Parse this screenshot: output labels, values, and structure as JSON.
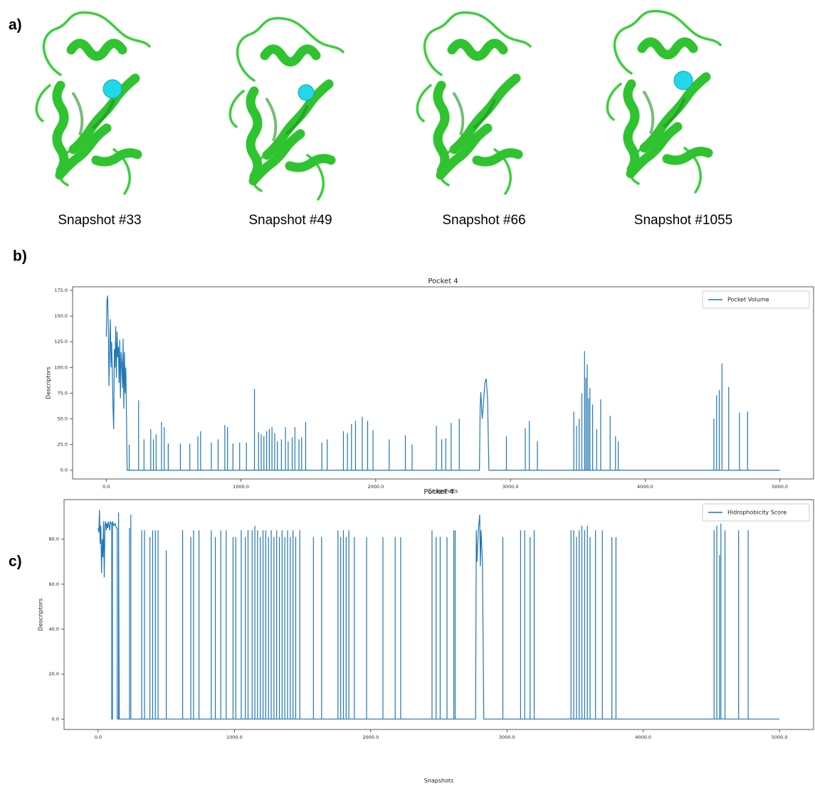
{
  "figure": {
    "panel_labels": [
      "a)",
      "b)",
      "c)"
    ],
    "snapshots": [
      "Snapshot #33",
      "Snapshot #49",
      "Snapshot #66",
      "Snapshot #1055"
    ]
  },
  "chart_data": [
    {
      "type": "line",
      "title": "Pocket 4",
      "x_label": "Snapshots",
      "y_label": "Descriptors",
      "xlim": [
        -250,
        5250
      ],
      "ylim": [
        -8.5,
        178.5
      ],
      "xticks": [
        {
          "value": 0,
          "label": "0.0"
        },
        {
          "value": 1000,
          "label": "1000.0"
        },
        {
          "value": 2000,
          "label": "2000.0"
        },
        {
          "value": 3000,
          "label": "3000.0"
        },
        {
          "value": 4000,
          "label": "4000.0"
        },
        {
          "value": 5000,
          "label": "5000.0"
        }
      ],
      "yticks": [
        {
          "value": 0,
          "label": "0.0"
        },
        {
          "value": 25,
          "label": "25.0"
        },
        {
          "value": 50,
          "label": "50.0"
        },
        {
          "value": 75,
          "label": "75.0"
        },
        {
          "value": 100,
          "label": "100.0"
        },
        {
          "value": 125,
          "label": "125.0"
        },
        {
          "value": 150,
          "label": "150.0"
        },
        {
          "value": 175,
          "label": "175.0"
        }
      ],
      "grid": false,
      "legend": "upper right",
      "x": [
        0,
        5,
        10,
        15,
        20,
        25,
        30,
        35,
        40,
        45,
        50,
        55,
        60,
        65,
        70,
        75,
        80,
        85,
        90,
        95,
        100,
        105,
        110,
        115,
        120,
        125,
        130,
        135,
        140,
        145,
        150,
        155,
        170,
        170,
        170,
        240,
        240,
        240,
        280,
        280,
        280,
        330,
        330,
        330,
        350,
        350,
        350,
        370,
        370,
        370,
        410,
        410,
        410,
        430,
        430,
        430,
        460,
        460,
        460,
        550,
        550,
        550,
        620,
        620,
        620,
        680,
        680,
        680,
        700,
        700,
        700,
        780,
        780,
        780,
        830,
        830,
        830,
        880,
        880,
        880,
        900,
        900,
        900,
        940,
        940,
        940,
        990,
        990,
        990,
        1040,
        1040,
        1040,
        1100,
        1100,
        1100,
        1130,
        1130,
        1130,
        1150,
        1150,
        1150,
        1170,
        1170,
        1170,
        1190,
        1190,
        1190,
        1210,
        1210,
        1210,
        1230,
        1230,
        1230,
        1250,
        1250,
        1250,
        1270,
        1270,
        1270,
        1300,
        1300,
        1300,
        1330,
        1330,
        1330,
        1350,
        1350,
        1350,
        1380,
        1380,
        1380,
        1400,
        1400,
        1400,
        1430,
        1430,
        1430,
        1450,
        1450,
        1450,
        1480,
        1480,
        1480,
        1600,
        1600,
        1600,
        1640,
        1640,
        1640,
        1760,
        1760,
        1760,
        1790,
        1790,
        1790,
        1820,
        1820,
        1820,
        1850,
        1850,
        1850,
        1900,
        1900,
        1900,
        1940,
        1940,
        1940,
        1980,
        1980,
        1980,
        2100,
        2100,
        2100,
        2220,
        2220,
        2220,
        2270,
        2270,
        2270,
        2450,
        2450,
        2450,
        2490,
        2490,
        2490,
        2520,
        2520,
        2520,
        2560,
        2560,
        2560,
        2620,
        2620,
        2620,
        2770,
        2775,
        2780,
        2790,
        2800,
        2810,
        2820,
        2830,
        2840,
        2970,
        2970,
        2970,
        3110,
        3110,
        3110,
        3140,
        3140,
        3140,
        3200,
        3200,
        3200,
        3470,
        3470,
        3470,
        3490,
        3490,
        3490,
        3510,
        3510,
        3510,
        3530,
        3530,
        3530,
        3550,
        3550,
        3550,
        3560,
        3560,
        3560,
        3570,
        3570,
        3570,
        3580,
        3580,
        3580,
        3590,
        3590,
        3590,
        3610,
        3610,
        3610,
        3640,
        3640,
        3640,
        3670,
        3670,
        3670,
        3740,
        3740,
        3740,
        3780,
        3780,
        3780,
        3800,
        3800,
        3800,
        4510,
        4510,
        4510,
        4530,
        4530,
        4530,
        4550,
        4550,
        4550,
        4570,
        4570,
        4570,
        4620,
        4620,
        4620,
        4700,
        4700,
        4700,
        4760,
        4760,
        4760,
        4999
      ],
      "series": [
        {
          "name": "Pocket Volume",
          "color": "#1f77b4",
          "values": [
            130,
            165,
            170,
            140,
            82,
            120,
            147,
            100,
            125,
            95,
            60,
            40,
            118,
            100,
            140,
            90,
            135,
            110,
            120,
            85,
            127,
            70,
            115,
            105,
            80,
            128,
            60,
            115,
            75,
            100,
            50,
            0,
            0,
            25,
            0,
            0,
            68,
            0,
            0,
            30,
            0,
            0,
            40,
            0,
            0,
            30,
            0,
            0,
            35,
            0,
            0,
            47,
            0,
            0,
            42,
            0,
            0,
            26,
            0,
            0,
            26,
            0,
            0,
            26,
            0,
            0,
            33,
            0,
            0,
            38,
            0,
            0,
            27,
            0,
            0,
            30,
            0,
            0,
            44,
            0,
            0,
            42,
            0,
            0,
            26,
            0,
            0,
            27,
            0,
            0,
            27,
            0,
            0,
            79,
            0,
            0,
            37,
            0,
            0,
            35,
            0,
            0,
            33,
            0,
            0,
            38,
            0,
            0,
            40,
            0,
            0,
            42,
            0,
            0,
            36,
            0,
            0,
            28,
            0,
            0,
            30,
            0,
            0,
            42,
            0,
            0,
            28,
            0,
            0,
            32,
            0,
            0,
            42,
            0,
            0,
            30,
            0,
            0,
            32,
            0,
            0,
            47,
            0,
            0,
            27,
            0,
            0,
            30,
            0,
            0,
            38,
            0,
            0,
            36,
            0,
            0,
            45,
            0,
            0,
            48,
            0,
            0,
            52,
            0,
            0,
            48,
            0,
            0,
            39,
            0,
            0,
            30,
            0,
            0,
            34,
            0,
            0,
            25,
            0,
            0,
            43,
            0,
            0,
            30,
            0,
            0,
            31,
            0,
            0,
            46,
            0,
            0,
            50,
            0,
            0,
            60,
            76,
            50,
            65,
            85,
            89,
            70,
            0,
            0,
            33,
            0,
            0,
            41,
            0,
            0,
            48,
            0,
            0,
            28,
            0,
            0,
            57,
            0,
            0,
            43,
            0,
            0,
            50,
            0,
            0,
            75,
            0,
            0,
            116,
            0,
            0,
            90,
            0,
            0,
            103,
            0,
            0,
            70,
            0,
            0,
            80,
            0,
            0,
            64,
            0,
            0,
            40,
            0,
            0,
            69,
            0,
            0,
            53,
            0,
            0,
            33,
            0,
            0,
            28,
            0,
            0,
            50,
            0,
            0,
            73,
            0,
            0,
            78,
            0,
            0,
            104,
            0,
            0,
            81,
            0,
            0,
            56,
            0,
            0,
            57,
            0,
            0
          ]
        }
      ]
    },
    {
      "type": "line",
      "title": "Pocket 4",
      "x_label": "Snapshots",
      "y_label": "Descriptors",
      "xlim": [
        -250,
        5250
      ],
      "ylim": [
        -4.65,
        97.65
      ],
      "xticks": [
        {
          "value": 0,
          "label": "0.0"
        },
        {
          "value": 1000,
          "label": "1000.0"
        },
        {
          "value": 2000,
          "label": "2000.0"
        },
        {
          "value": 3000,
          "label": "3000.0"
        },
        {
          "value": 4000,
          "label": "4000.0"
        },
        {
          "value": 5000,
          "label": "5000.0"
        }
      ],
      "yticks": [
        {
          "value": 0,
          "label": "0.0"
        },
        {
          "value": 20,
          "label": "20.0"
        },
        {
          "value": 40,
          "label": "40.0"
        },
        {
          "value": 60,
          "label": "60.0"
        },
        {
          "value": 80,
          "label": "80.0"
        }
      ],
      "grid": false,
      "legend": "upper right",
      "x": [
        0,
        5,
        10,
        15,
        20,
        25,
        30,
        35,
        40,
        45,
        50,
        55,
        60,
        65,
        70,
        75,
        80,
        85,
        90,
        95,
        100,
        100,
        105,
        105,
        115,
        125,
        135,
        140,
        140,
        150,
        150,
        155,
        230,
        230,
        230,
        240,
        240,
        240,
        320,
        320,
        320,
        340,
        340,
        340,
        380,
        380,
        380,
        400,
        400,
        400,
        420,
        420,
        420,
        440,
        440,
        440,
        500,
        500,
        500,
        620,
        620,
        620,
        680,
        680,
        680,
        700,
        700,
        700,
        740,
        740,
        740,
        830,
        830,
        830,
        860,
        860,
        860,
        900,
        900,
        900,
        940,
        940,
        940,
        990,
        990,
        990,
        1010,
        1010,
        1010,
        1050,
        1050,
        1050,
        1080,
        1080,
        1080,
        1100,
        1100,
        1100,
        1130,
        1130,
        1130,
        1150,
        1150,
        1150,
        1170,
        1170,
        1170,
        1190,
        1190,
        1190,
        1210,
        1210,
        1210,
        1230,
        1230,
        1230,
        1250,
        1250,
        1250,
        1270,
        1270,
        1270,
        1290,
        1290,
        1290,
        1310,
        1310,
        1310,
        1330,
        1330,
        1330,
        1350,
        1350,
        1350,
        1370,
        1370,
        1370,
        1390,
        1390,
        1390,
        1410,
        1410,
        1410,
        1430,
        1430,
        1430,
        1450,
        1450,
        1450,
        1480,
        1480,
        1480,
        1580,
        1580,
        1580,
        1640,
        1640,
        1640,
        1760,
        1760,
        1760,
        1780,
        1780,
        1780,
        1800,
        1800,
        1800,
        1820,
        1820,
        1820,
        1840,
        1840,
        1840,
        1880,
        1880,
        1880,
        1970,
        1970,
        1970,
        2090,
        2090,
        2090,
        2180,
        2180,
        2180,
        2220,
        2220,
        2220,
        2450,
        2450,
        2450,
        2480,
        2480,
        2480,
        2510,
        2510,
        2510,
        2560,
        2560,
        2560,
        2610,
        2610,
        2610,
        2620,
        2620,
        2620,
        2770,
        2775,
        2780,
        2790,
        2800,
        2805,
        2810,
        2820,
        2830,
        2970,
        2970,
        2970,
        3100,
        3100,
        3100,
        3130,
        3130,
        3130,
        3170,
        3170,
        3170,
        3200,
        3200,
        3200,
        3470,
        3470,
        3470,
        3490,
        3490,
        3490,
        3510,
        3510,
        3510,
        3530,
        3530,
        3530,
        3550,
        3550,
        3550,
        3570,
        3570,
        3570,
        3590,
        3590,
        3590,
        3610,
        3610,
        3610,
        3650,
        3650,
        3650,
        3700,
        3700,
        3700,
        3770,
        3770,
        3770,
        3800,
        3800,
        3800,
        4520,
        4520,
        4520,
        4540,
        4540,
        4540,
        4560,
        4560,
        4560,
        4570,
        4570,
        4570,
        4600,
        4600,
        4600,
        4700,
        4700,
        4700,
        4770,
        4770,
        4770,
        4999
      ],
      "series": [
        {
          "name": "Hidrophobicity Score",
          "color": "#1f77b4",
          "values": [
            85,
            83,
            93,
            78,
            86,
            65,
            80,
            72,
            88,
            63,
            86,
            88,
            84,
            87,
            85,
            88,
            86,
            84,
            88,
            87,
            87,
            0,
            0,
            88,
            86,
            87,
            85,
            85,
            0,
            0,
            92,
            0,
            0,
            85,
            0,
            0,
            91,
            0,
            0,
            84,
            0,
            0,
            84,
            0,
            0,
            81,
            0,
            0,
            84,
            0,
            0,
            84,
            0,
            0,
            84,
            0,
            0,
            75,
            0,
            0,
            84,
            0,
            0,
            81,
            0,
            0,
            84,
            0,
            0,
            84,
            0,
            0,
            84,
            0,
            0,
            81,
            0,
            0,
            84,
            0,
            0,
            84,
            0,
            0,
            81,
            0,
            0,
            81,
            0,
            0,
            84,
            0,
            0,
            81,
            0,
            0,
            84,
            0,
            0,
            84,
            0,
            0,
            86,
            0,
            0,
            84,
            0,
            0,
            81,
            0,
            0,
            84,
            0,
            0,
            84,
            0,
            0,
            81,
            0,
            0,
            84,
            0,
            0,
            81,
            0,
            0,
            84,
            0,
            0,
            81,
            0,
            0,
            84,
            0,
            0,
            81,
            0,
            0,
            84,
            0,
            0,
            81,
            0,
            0,
            84,
            0,
            0,
            81,
            0,
            0,
            84,
            0,
            0,
            81,
            0,
            0,
            81,
            0,
            0,
            84,
            0,
            0,
            81,
            0,
            0,
            84,
            0,
            0,
            81,
            0,
            0,
            84,
            0,
            0,
            81,
            0,
            0,
            81,
            0,
            0,
            81,
            0,
            0,
            81,
            0,
            0,
            81,
            0,
            0,
            84,
            0,
            0,
            81,
            0,
            0,
            81,
            0,
            0,
            81,
            0,
            0,
            84,
            0,
            0,
            84,
            0,
            0,
            84,
            70,
            84,
            91,
            68,
            84,
            70,
            0,
            0,
            81,
            0,
            0,
            84,
            0,
            0,
            84,
            0,
            0,
            81,
            0,
            0,
            84,
            0,
            0,
            84,
            0,
            0,
            84,
            0,
            0,
            81,
            0,
            0,
            84,
            0,
            0,
            86,
            0,
            0,
            84,
            0,
            0,
            86,
            0,
            0,
            81,
            0,
            0,
            84,
            0,
            0,
            84,
            0,
            0,
            81,
            0,
            0,
            81,
            0,
            0,
            84,
            0,
            0,
            86,
            0,
            0,
            73,
            0,
            0,
            87,
            0,
            0,
            84,
            0,
            0,
            84,
            0,
            0,
            84,
            0,
            0
          ]
        }
      ]
    }
  ]
}
